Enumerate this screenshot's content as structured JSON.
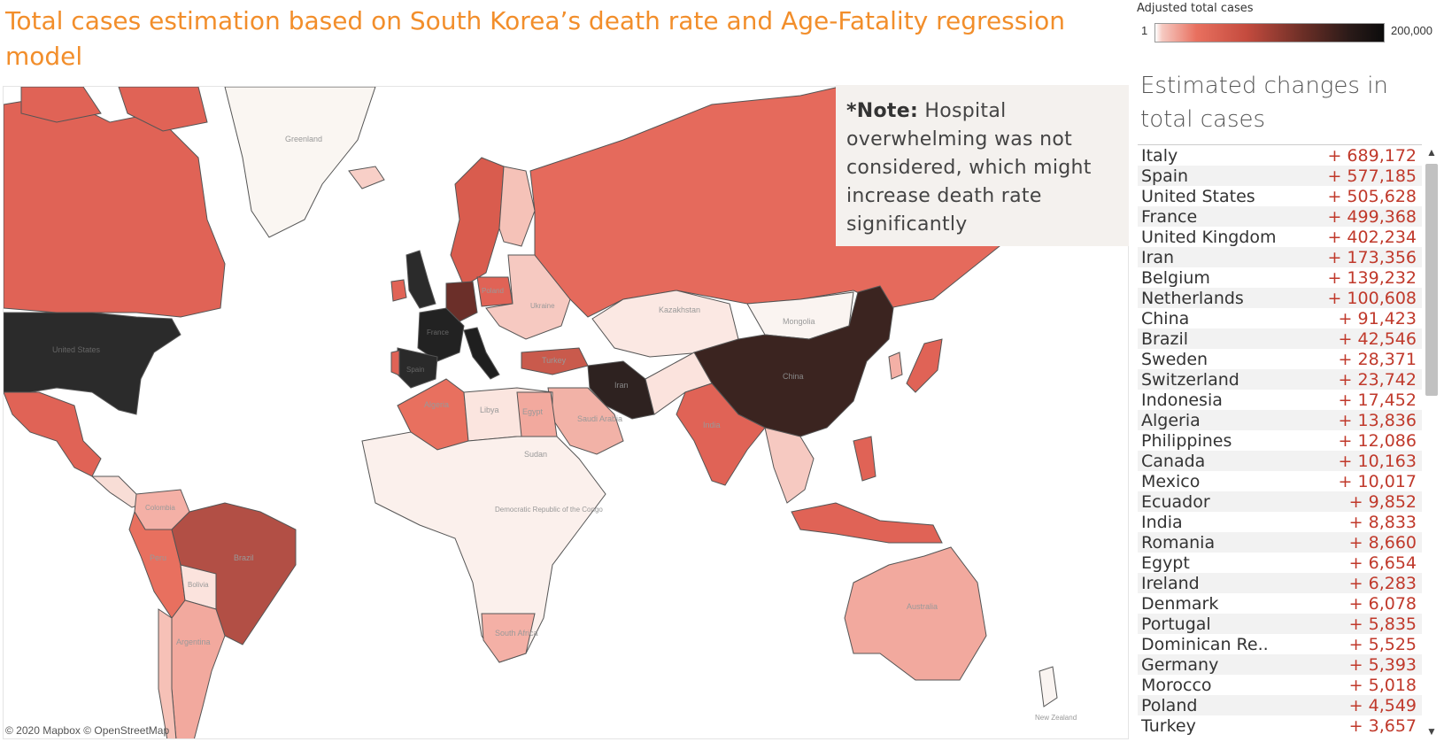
{
  "title": "Total cases estimation based on South Korea’s death rate and Age-Fatality regression model",
  "legend": {
    "title": "Adjusted total cases",
    "min": "1",
    "max": "200,000"
  },
  "note": {
    "bold": "*Note:",
    "text": " Hospital overwhelming was not considered, which might increase death rate significantly"
  },
  "copyright": "© 2020 Mapbox © OpenStreetMap",
  "panel": {
    "title": "Estimated changes in total cases"
  },
  "map_labels": [
    "Greenland",
    "Kazakhstan",
    "Mongolia",
    "China",
    "Iran",
    "Turkey",
    "Algeria",
    "Libya",
    "Egypt",
    "Saudi Arabia",
    "Sudan",
    "Democratic Republic of the Congo",
    "South Africa",
    "India",
    "Brazil",
    "Peru",
    "Argentina",
    "Australia",
    "United States",
    "France",
    "Spain",
    "Ukraine",
    "Poland",
    "New Zealand",
    "Bolivia",
    "Colombia"
  ],
  "colors": {
    "title": "#F28E2B",
    "value": "#c0392b",
    "darkest": "#2a2a2a",
    "dark": "#3e2723",
    "mid": "#b24f45",
    "light": "#e8705f",
    "pale": "#f5b8ae",
    "faint": "#fbe9e4",
    "bg": "#faf6f4"
  },
  "rows": [
    {
      "name": "Italy",
      "value": "+ 689,172"
    },
    {
      "name": "Spain",
      "value": "+ 577,185"
    },
    {
      "name": "United States",
      "value": "+ 505,628"
    },
    {
      "name": "France",
      "value": "+ 499,368"
    },
    {
      "name": "United Kingdom",
      "value": "+ 402,234"
    },
    {
      "name": "Iran",
      "value": "+ 173,356"
    },
    {
      "name": "Belgium",
      "value": "+ 139,232"
    },
    {
      "name": "Netherlands",
      "value": "+ 100,608"
    },
    {
      "name": "China",
      "value": "+ 91,423"
    },
    {
      "name": "Brazil",
      "value": "+ 42,546"
    },
    {
      "name": "Sweden",
      "value": "+ 28,371"
    },
    {
      "name": "Switzerland",
      "value": "+ 23,742"
    },
    {
      "name": "Indonesia",
      "value": "+ 17,452"
    },
    {
      "name": "Algeria",
      "value": "+ 13,836"
    },
    {
      "name": "Philippines",
      "value": "+ 12,086"
    },
    {
      "name": "Canada",
      "value": "+ 10,163"
    },
    {
      "name": "Mexico",
      "value": "+ 10,017"
    },
    {
      "name": "Ecuador",
      "value": "+ 9,852"
    },
    {
      "name": "India",
      "value": "+ 8,833"
    },
    {
      "name": "Romania",
      "value": "+ 8,660"
    },
    {
      "name": "Egypt",
      "value": "+ 6,654"
    },
    {
      "name": "Ireland",
      "value": "+ 6,283"
    },
    {
      "name": "Denmark",
      "value": "+ 6,078"
    },
    {
      "name": "Portugal",
      "value": "+ 5,835"
    },
    {
      "name": "Dominican Re..",
      "value": "+ 5,525"
    },
    {
      "name": "Germany",
      "value": "+ 5,393"
    },
    {
      "name": "Morocco",
      "value": "+ 5,018"
    },
    {
      "name": "Poland",
      "value": "+ 4,549"
    },
    {
      "name": "Turkey",
      "value": "+ 3,657"
    }
  ]
}
